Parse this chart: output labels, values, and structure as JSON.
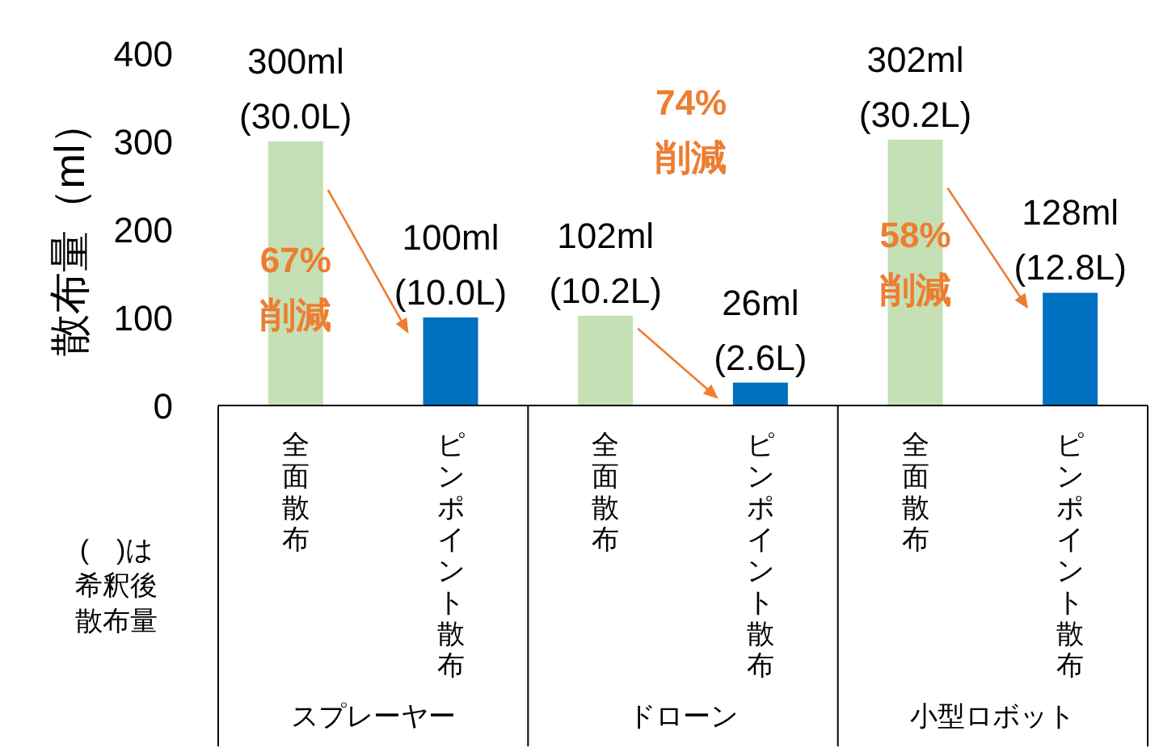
{
  "chart_data": {
    "type": "bar",
    "ylabel": "散布量（ml）",
    "categories": [
      "全面散布",
      "ピンポイント散布",
      "全面散布",
      "ピンポイント散布",
      "全面散布",
      "ピンポイント散布"
    ],
    "values": [
      300,
      100,
      102,
      26,
      302,
      128
    ],
    "colors": [
      "#c5e0b4",
      "#0070c0",
      "#c5e0b4",
      "#0070c0",
      "#c5e0b4",
      "#0070c0"
    ],
    "value_labels": [
      "300ml\n(30.0L)",
      "100ml\n(10.0L)",
      "102ml\n(10.2L)",
      "26ml\n(2.6L)",
      "302ml\n(30.2L)",
      "128ml\n(12.8L)"
    ],
    "ylim": [
      0,
      400
    ],
    "yticks": [
      0,
      100,
      200,
      300,
      400
    ],
    "annotations": [
      "スプレーヤー",
      "ドローン",
      "小型ロボット",
      "(　)は希釈後散布量",
      "67%\n削減",
      "74%\n削減",
      "58%\n削減"
    ],
    "grid": false
  }
}
